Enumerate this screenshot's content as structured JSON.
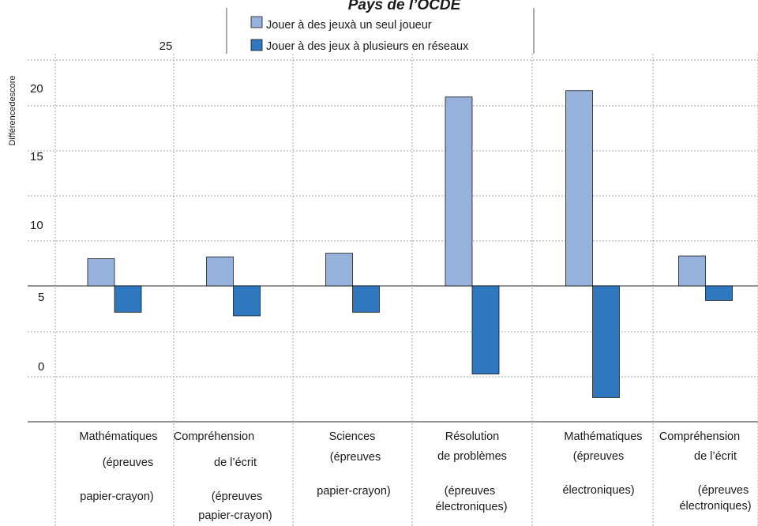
{
  "chart_data": {
    "type": "bar",
    "title": "Pays de l’OCDE",
    "ylabel": "Différencedescore",
    "yticks": [
      "25",
      "20",
      "15",
      "10",
      "5",
      "0"
    ],
    "categories": [
      [
        "Mathématiques",
        "(épreuves",
        "papier-crayon)"
      ],
      [
        "Compréhension",
        "de l’écrit",
        "(épreuves",
        "papier-crayon)"
      ],
      [
        "Sciences",
        "(épreuves",
        "papier-crayon)"
      ],
      [
        "Résolution",
        "de problèmes",
        "(épreuves",
        "électroniques)"
      ],
      [
        "Mathématiques",
        "(épreuves",
        "électroniques)"
      ],
      [
        "Compréhension",
        "de l’écrit",
        "(épreuves",
        "électroniques)"
      ]
    ],
    "series": [
      {
        "name": "Jouer à des jeuxà un seul joueur",
        "color": "#95b1dc",
        "values": [
          3.0,
          3.2,
          3.6,
          20.8,
          21.5,
          3.3
        ]
      },
      {
        "name": "Jouer à des jeux à plusieurs en réseaux",
        "color": "#2f78c0",
        "values": [
          -2.9,
          -3.3,
          -2.9,
          -9.7,
          -12.3,
          -1.6
        ]
      }
    ],
    "ylim": [
      -15,
      31
    ],
    "legend": "top-center",
    "grid": true
  }
}
